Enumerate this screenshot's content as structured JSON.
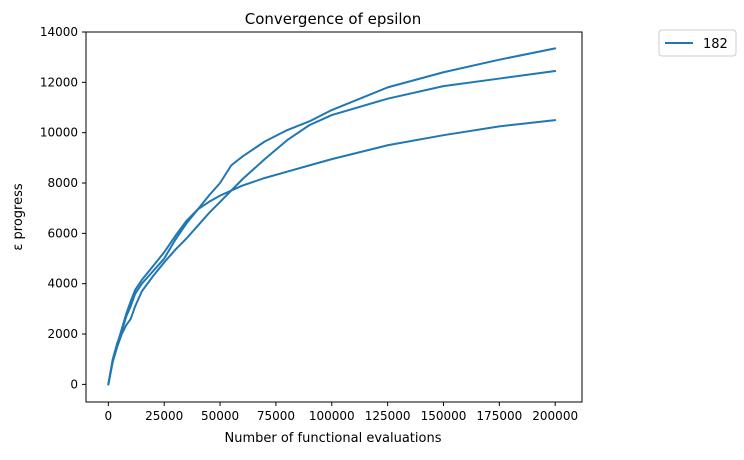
{
  "chart_data": {
    "type": "line",
    "title": "Convergence of epsilon",
    "xlabel": "Number of functional evaluations",
    "ylabel": "ε progress",
    "xlim": [
      -10000,
      212000
    ],
    "ylim": [
      -700,
      14000
    ],
    "xticks": [
      0,
      25000,
      50000,
      75000,
      100000,
      125000,
      150000,
      175000,
      200000
    ],
    "yticks": [
      0,
      2000,
      4000,
      6000,
      8000,
      10000,
      12000,
      14000
    ],
    "grid": false,
    "legend": {
      "placement": "outside-top-right",
      "entries": [
        "182"
      ]
    },
    "series_color": "#1f77b4",
    "series": [
      {
        "name": "182",
        "points": [
          [
            0,
            0
          ],
          [
            2000,
            900
          ],
          [
            4000,
            1500
          ],
          [
            6000,
            2000
          ],
          [
            8000,
            2350
          ],
          [
            10000,
            2600
          ],
          [
            12000,
            3100
          ],
          [
            15000,
            3700
          ],
          [
            20000,
            4300
          ],
          [
            25000,
            4850
          ],
          [
            30000,
            5350
          ],
          [
            35000,
            5800
          ],
          [
            40000,
            6300
          ],
          [
            45000,
            6800
          ],
          [
            50000,
            7250
          ],
          [
            60000,
            8150
          ],
          [
            70000,
            8950
          ],
          [
            80000,
            9700
          ],
          [
            90000,
            10300
          ],
          [
            100000,
            10700
          ],
          [
            125000,
            11350
          ],
          [
            150000,
            11850
          ],
          [
            175000,
            12150
          ],
          [
            200000,
            12450
          ]
        ]
      },
      {
        "name": "182",
        "points": [
          [
            0,
            0
          ],
          [
            2000,
            1000
          ],
          [
            4000,
            1650
          ],
          [
            6000,
            2100
          ],
          [
            8000,
            2700
          ],
          [
            10000,
            3100
          ],
          [
            12000,
            3600
          ],
          [
            15000,
            4000
          ],
          [
            20000,
            4500
          ],
          [
            25000,
            5000
          ],
          [
            30000,
            5750
          ],
          [
            35000,
            6400
          ],
          [
            40000,
            6950
          ],
          [
            45000,
            7500
          ],
          [
            50000,
            8000
          ],
          [
            55000,
            8700
          ],
          [
            60000,
            9050
          ],
          [
            70000,
            9650
          ],
          [
            80000,
            10100
          ],
          [
            90000,
            10450
          ],
          [
            100000,
            10900
          ],
          [
            125000,
            11800
          ],
          [
            150000,
            12400
          ],
          [
            175000,
            12900
          ],
          [
            200000,
            13350
          ]
        ]
      },
      {
        "name": "182",
        "points": [
          [
            0,
            0
          ],
          [
            2000,
            1000
          ],
          [
            4000,
            1600
          ],
          [
            6000,
            2200
          ],
          [
            8000,
            2800
          ],
          [
            10000,
            3300
          ],
          [
            12000,
            3750
          ],
          [
            15000,
            4150
          ],
          [
            20000,
            4700
          ],
          [
            25000,
            5250
          ],
          [
            30000,
            5900
          ],
          [
            35000,
            6500
          ],
          [
            40000,
            6950
          ],
          [
            45000,
            7250
          ],
          [
            50000,
            7500
          ],
          [
            60000,
            7900
          ],
          [
            70000,
            8200
          ],
          [
            80000,
            8450
          ],
          [
            90000,
            8700
          ],
          [
            100000,
            8950
          ],
          [
            125000,
            9500
          ],
          [
            150000,
            9900
          ],
          [
            175000,
            10250
          ],
          [
            200000,
            10500
          ]
        ]
      }
    ]
  }
}
